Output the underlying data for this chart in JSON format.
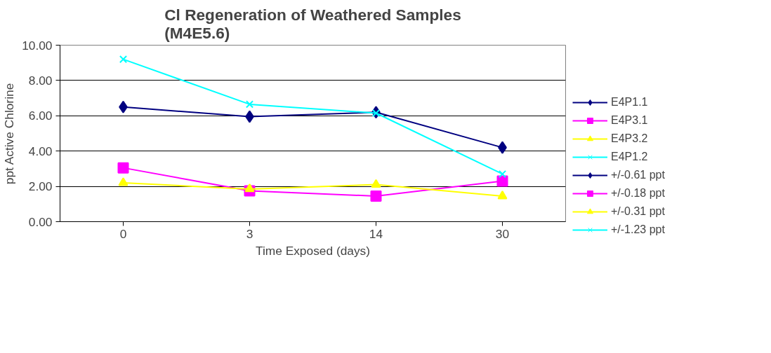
{
  "chart_data": {
    "type": "line",
    "title": "Cl Regeneration of Weathered Samples\n(M4E5.6)",
    "xlabel": "Time Exposed (days)",
    "ylabel": "ppt Active Chlorine",
    "categories": [
      "0",
      "3",
      "14",
      "30"
    ],
    "ylim": [
      0,
      10
    ],
    "yticks": [
      {
        "value": 0,
        "label": "0.00"
      },
      {
        "value": 2,
        "label": "2.00"
      },
      {
        "value": 4,
        "label": "4.00"
      },
      {
        "value": 6,
        "label": "6.00"
      },
      {
        "value": 8,
        "label": "8.00"
      },
      {
        "value": 10,
        "label": "10.00"
      }
    ],
    "grid": "y",
    "legend": "right",
    "series": [
      {
        "name": "E4P1.1",
        "color": "#000080",
        "marker": "diamond",
        "values": [
          6.5,
          5.95,
          6.2,
          4.2
        ]
      },
      {
        "name": "E4P3.1",
        "color": "#ff00ff",
        "marker": "square",
        "values": [
          3.05,
          1.75,
          1.45,
          2.3
        ]
      },
      {
        "name": "E4P3.2",
        "color": "#ffff00",
        "marker": "triangle",
        "values": [
          2.2,
          1.85,
          2.1,
          1.45
        ]
      },
      {
        "name": "E4P1.2",
        "color": "#00ffff",
        "marker": "cross",
        "values": [
          9.2,
          6.65,
          6.15,
          2.7
        ]
      },
      {
        "name": "+/-0.61 ppt",
        "color": "#000080",
        "marker": "diamond",
        "values": [
          null,
          null,
          null,
          null
        ]
      },
      {
        "name": "+/-0.18 ppt",
        "color": "#ff00ff",
        "marker": "square",
        "values": [
          null,
          null,
          null,
          null
        ]
      },
      {
        "name": "+/-0.31 ppt",
        "color": "#ffff00",
        "marker": "triangle",
        "values": [
          null,
          null,
          null,
          null
        ]
      },
      {
        "name": "+/-1.23 ppt",
        "color": "#00ffff",
        "marker": "cross",
        "values": [
          null,
          null,
          null,
          null
        ]
      }
    ]
  }
}
